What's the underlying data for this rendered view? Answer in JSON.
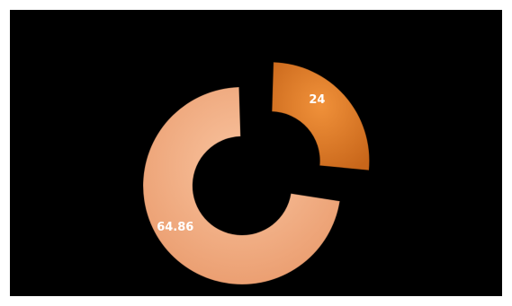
{
  "chart_data": {
    "type": "pie",
    "variant": "donut-exploded",
    "values": [
      24,
      64.86
    ],
    "labels": [
      "24",
      "64.86"
    ],
    "colors": [
      "#E07F24",
      "#F2AE82"
    ],
    "background": "#000000",
    "title": "",
    "legend": "none"
  }
}
